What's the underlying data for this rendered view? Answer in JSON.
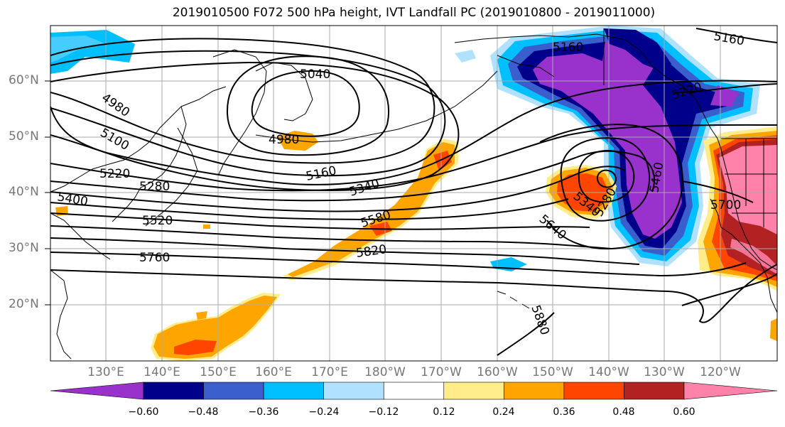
{
  "title": "2019010500 F072 500 hPa height, IVT Landfall PC (2019010800 - 2019011000)",
  "map": {
    "latitude_labels": [
      "60°N",
      "50°N",
      "40°N",
      "30°N",
      "20°N"
    ],
    "longitude_labels": [
      "130°E",
      "140°E",
      "150°E",
      "160°E",
      "170°E",
      "180°W",
      "170°W",
      "160°W",
      "150°W",
      "140°W",
      "130°W",
      "120°W"
    ],
    "contour_labels": [
      "5040",
      "4980",
      "4980",
      "5100",
      "5220",
      "5280",
      "5400",
      "5520",
      "5760",
      "5160",
      "5340",
      "5580",
      "5820",
      "5160",
      "5220",
      "5340",
      "5280",
      "5460",
      "5640",
      "5700",
      "5880",
      "5160"
    ],
    "grid": true,
    "coastlines": true
  },
  "colorbar": {
    "tick_labels": [
      "−0.60",
      "−0.48",
      "−0.36",
      "−0.24",
      "−0.12",
      "0.12",
      "0.24",
      "0.36",
      "0.48",
      "0.60"
    ],
    "colors": [
      "#9932cc",
      "#00008b",
      "#3a5fcd",
      "#00bfff",
      "#b0e2ff",
      "#ffffff",
      "#ffec8b",
      "#ffa500",
      "#ff4500",
      "#b22222",
      "#ff82ab"
    ],
    "extend": "both"
  },
  "colors": {
    "purple": "#9932cc",
    "navy": "#00008b",
    "royalblue": "#3a5fcd",
    "skyblue": "#00bfff",
    "lightblue": "#b0e2ff",
    "yellow": "#ffec8b",
    "orange": "#ffa500",
    "redorange": "#ff4500",
    "firebrick": "#b22222",
    "pink": "#ff82ab"
  }
}
